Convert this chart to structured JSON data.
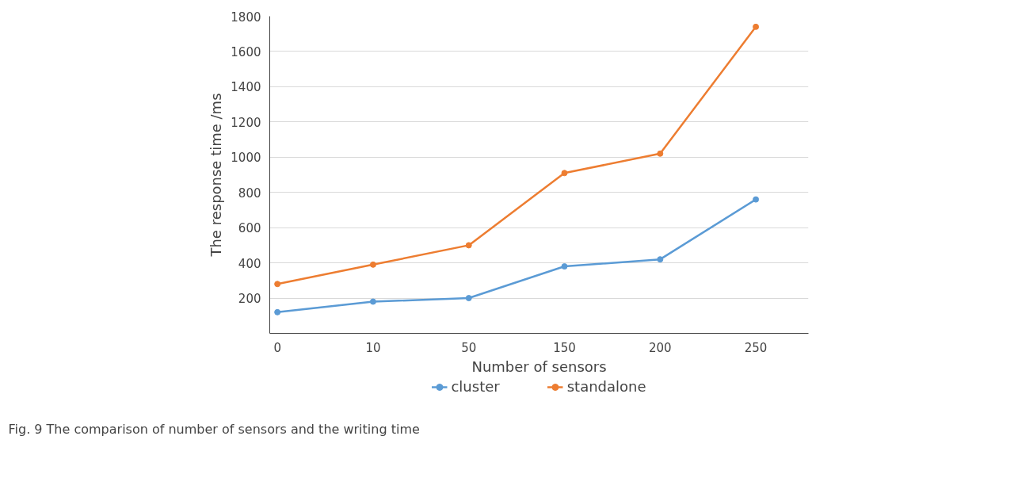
{
  "chart_data": {
    "type": "line",
    "xlabel": "Number of sensors",
    "ylabel": "The response time /ms",
    "categories": [
      "0",
      "10",
      "50",
      "150",
      "200",
      "250"
    ],
    "series": [
      {
        "name": "cluster",
        "color": "#5b9bd5",
        "values": [
          120,
          180,
          200,
          380,
          420,
          760
        ]
      },
      {
        "name": "standalone",
        "color": "#ed7d31",
        "values": [
          280,
          390,
          500,
          910,
          1020,
          1740
        ]
      }
    ],
    "ylim": [
      0,
      1800
    ],
    "yticks": [
      200,
      400,
      600,
      800,
      1000,
      1200,
      1400,
      1600,
      1800
    ],
    "grid": "y",
    "legend": "bottom",
    "marker": "circle",
    "line_style": "solid",
    "annotations": [
      "Fig. 9 The comparison of number of sensors and the writing time"
    ]
  }
}
